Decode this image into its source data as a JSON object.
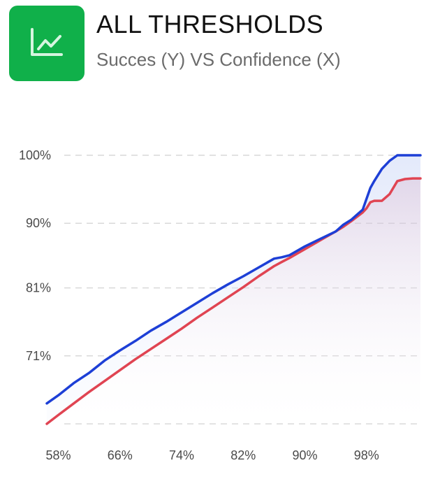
{
  "header": {
    "icon": "line-chart-icon",
    "title": "ALL THRESHOLDS",
    "subtitle": "Succes (Y) VS Confidence (X)"
  },
  "colors": {
    "icon_bg": "#10b04a",
    "series_blue": "#1d3fd6",
    "series_red": "#e04452",
    "grid": "#d9d9d9"
  },
  "chart_data": {
    "type": "line",
    "title": "ALL THRESHOLDS",
    "subtitle": "Succes (Y) VS Confidence (X)",
    "xlabel": "",
    "ylabel": "",
    "x_ticks": [
      "58%",
      "66%",
      "74%",
      "82%",
      "90%",
      "98%"
    ],
    "x_tick_values": [
      58,
      66,
      74,
      82,
      90,
      98
    ],
    "y_ticks": [
      "100%",
      "90%",
      "81%",
      "71%"
    ],
    "y_tick_values": [
      100,
      90,
      80.5,
      70.5
    ],
    "xlim": [
      56.5,
      105
    ],
    "ylim": [
      60.5,
      100
    ],
    "grid": "horizontal dashed",
    "legend": "none",
    "x": [
      56.5,
      58,
      60,
      62,
      64,
      66,
      68,
      70,
      72,
      74,
      76,
      78,
      80,
      82,
      84,
      86,
      87,
      88,
      90,
      92,
      94,
      95,
      96,
      97.5,
      98,
      98.5,
      99,
      100,
      101,
      102,
      103,
      104,
      105
    ],
    "series": [
      {
        "values": [
          63.5,
          64.7,
          66.5,
          68.0,
          69.8,
          71.3,
          72.7,
          74.2,
          75.5,
          76.9,
          78.3,
          79.7,
          81.0,
          82.2,
          83.5,
          84.8,
          85.0,
          85.3,
          86.6,
          87.7,
          88.8,
          89.8,
          90.5,
          92.0,
          93.6,
          95.2,
          96.2,
          98.0,
          99.2,
          100.0,
          100.0,
          100.0,
          100.0
        ]
      },
      {
        "values": [
          60.5,
          61.8,
          63.5,
          65.2,
          66.8,
          68.4,
          70.0,
          71.5,
          73.0,
          74.5,
          76.1,
          77.6,
          79.1,
          80.6,
          82.2,
          83.7,
          84.3,
          84.9,
          86.2,
          87.5,
          88.8,
          89.5,
          90.3,
          91.6,
          92.2,
          93.1,
          93.3,
          93.3,
          94.3,
          96.2,
          96.5,
          96.6,
          96.6
        ]
      }
    ]
  }
}
